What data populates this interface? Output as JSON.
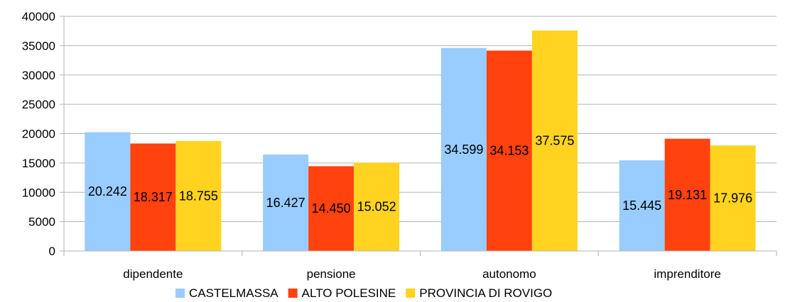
{
  "chart_data": {
    "type": "bar",
    "title": "",
    "xlabel": "",
    "ylabel": "",
    "ylim": [
      0,
      40000
    ],
    "yticks": [
      "0",
      "5000",
      "10000",
      "15000",
      "20000",
      "25000",
      "30000",
      "35000",
      "40000"
    ],
    "grid": true,
    "legend_position": "bottom",
    "categories": [
      "dipendente",
      "pensione",
      "autonomo",
      "imprenditore"
    ],
    "series": [
      {
        "name": "CASTELMASSA",
        "color": "#99ccff",
        "values": [
          20242,
          16427,
          34599,
          15445
        ],
        "labels": [
          "20.242",
          "16.427",
          "34.599",
          "15.445"
        ]
      },
      {
        "name": "ALTO POLESINE",
        "color": "#ff420e",
        "values": [
          18317,
          14450,
          34153,
          19131
        ],
        "labels": [
          "18.317",
          "14.450",
          "34.153",
          "19.131"
        ]
      },
      {
        "name": "PROVINCIA DI ROVIGO",
        "color": "#ffd320",
        "values": [
          18755,
          15052,
          37575,
          17976
        ],
        "labels": [
          "18.755",
          "15.052",
          "37.575",
          "17.976"
        ]
      }
    ]
  }
}
